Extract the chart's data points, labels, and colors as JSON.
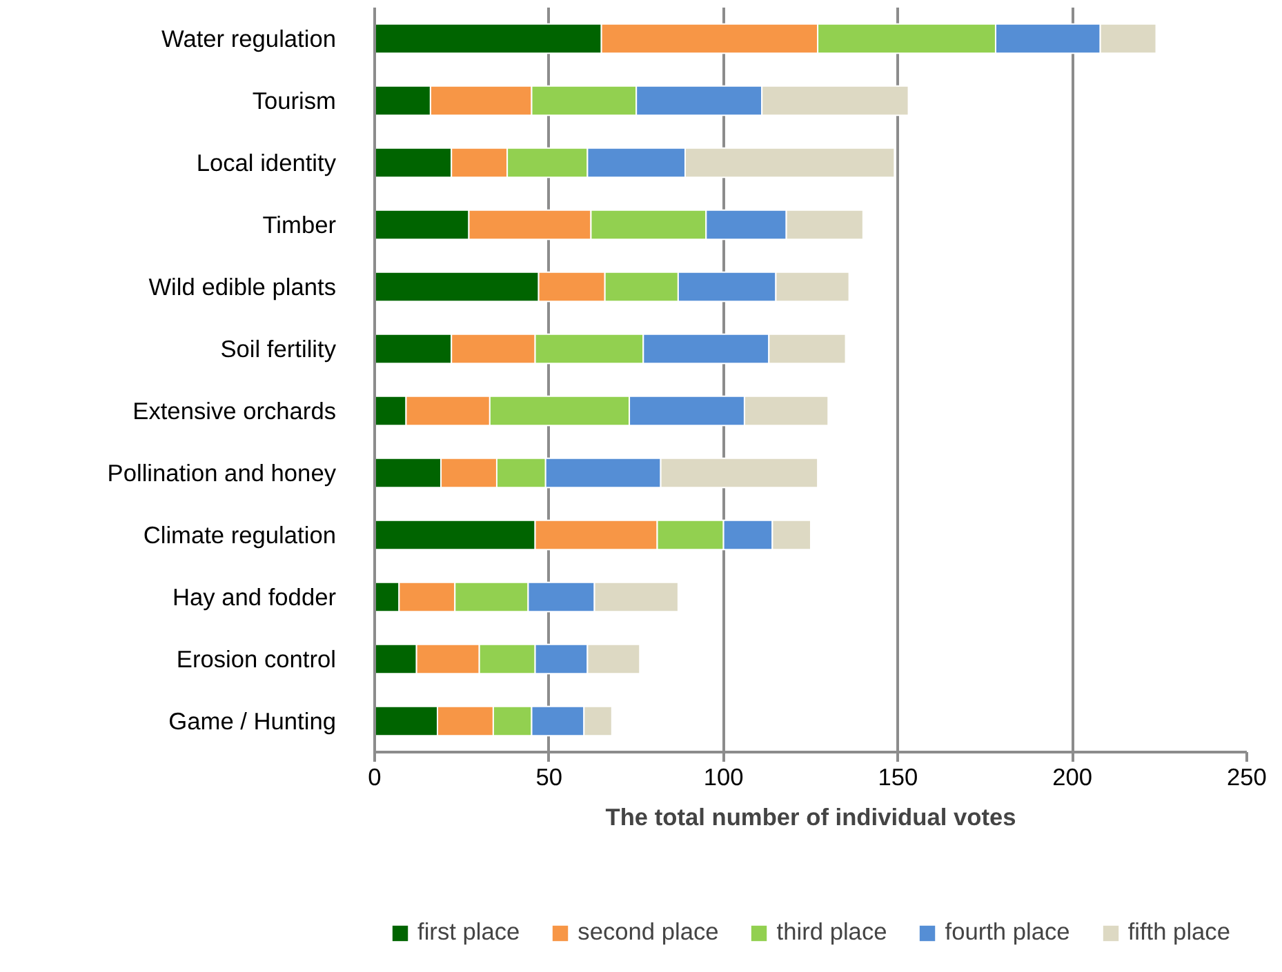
{
  "chart_data": {
    "type": "bar",
    "orientation": "horizontal",
    "stacked": true,
    "xlabel": "The total number of individual votes",
    "categories": [
      "Water regulation",
      "Tourism",
      "Local identity",
      "Timber",
      "Wild edible plants",
      "Soil fertility",
      "Extensive orchards",
      "Pollination and honey",
      "Climate regulation",
      "Hay and fodder",
      "Erosion control",
      "Game / Hunting"
    ],
    "series": [
      {
        "name": "first place",
        "color": "#006400",
        "values": [
          65,
          16,
          22,
          27,
          47,
          22,
          9,
          19,
          46,
          7,
          12,
          18
        ]
      },
      {
        "name": "second place",
        "color": "#f79646",
        "values": [
          62,
          29,
          16,
          35,
          19,
          24,
          24,
          16,
          35,
          16,
          18,
          16
        ]
      },
      {
        "name": "third place",
        "color": "#92d050",
        "values": [
          51,
          30,
          23,
          33,
          21,
          31,
          40,
          14,
          19,
          21,
          16,
          11
        ]
      },
      {
        "name": "fourth place",
        "color": "#558ed5",
        "values": [
          30,
          36,
          28,
          23,
          28,
          36,
          33,
          33,
          14,
          19,
          15,
          15
        ]
      },
      {
        "name": "fifth place",
        "color": "#ddd9c3",
        "values": [
          16,
          42,
          60,
          22,
          21,
          22,
          24,
          45,
          11,
          24,
          15,
          8
        ]
      }
    ],
    "xlim": [
      0,
      250
    ],
    "xticks": [
      0,
      50,
      100,
      150,
      200,
      250
    ],
    "grid": "x",
    "legend": "bottom"
  }
}
